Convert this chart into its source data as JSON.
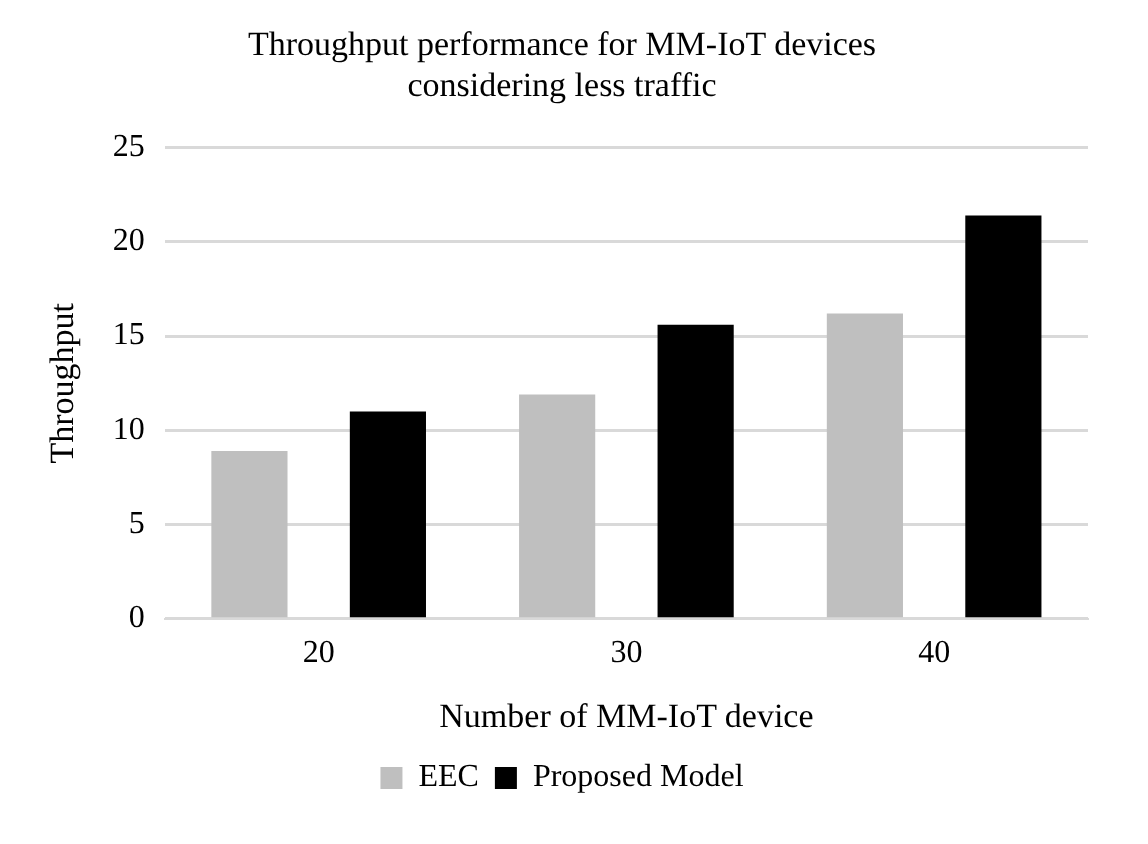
{
  "chart_data": {
    "type": "bar",
    "title": "Throughput performance for MM-IoT devices considering less traffic",
    "xlabel": "Number of MM-IoT device",
    "ylabel": "Throughput",
    "categories": [
      "20",
      "30",
      "40"
    ],
    "series": [
      {
        "name": "EEC",
        "color": "#bfbfbf",
        "values": [
          8.9,
          11.9,
          16.2
        ]
      },
      {
        "name": "Proposed Model",
        "color": "#000000",
        "values": [
          11.0,
          15.6,
          21.4
        ]
      }
    ],
    "ylim": [
      0,
      25
    ],
    "yticks": [
      0,
      5,
      10,
      15,
      20,
      25
    ],
    "grid": "y",
    "legend": "bottom"
  }
}
